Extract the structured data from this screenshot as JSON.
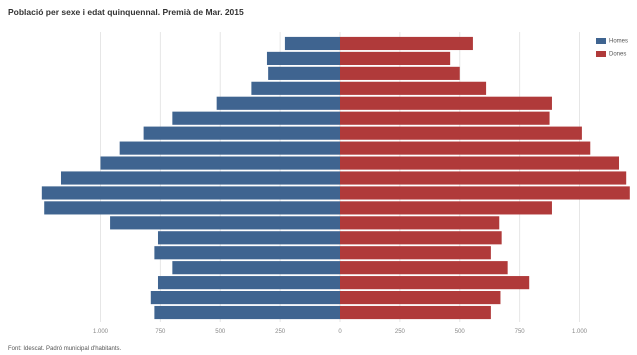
{
  "title": "Població per sexe i edat quinquennal. Premià de Mar. 2015",
  "source": "Font: Idescat. Padró municipal d'habitants.",
  "colors": {
    "male": "#3f6490",
    "female": "#b03a3a",
    "grid": "#e6e6e6",
    "tick": "#888888"
  },
  "chart_data": {
    "type": "bar",
    "orientation": "horizontal",
    "title": "Població per sexe i edat quinquennal. Premià de Mar. 2015",
    "xlabel": "",
    "ylabel": "",
    "xlim": [
      -1200,
      1200
    ],
    "xticks": [
      -1000,
      -750,
      -500,
      -250,
      0,
      250,
      500,
      750,
      1000
    ],
    "xtick_labels": [
      "1.000",
      "750",
      "500",
      "250",
      "0",
      "250",
      "500",
      "750",
      "1.000"
    ],
    "categories_top_to_bottom": 19,
    "grid": true,
    "legend_position": "top-right",
    "series": [
      {
        "name": "Homes",
        "color": "#3f6490",
        "values": [
          230,
          305,
          300,
          370,
          515,
          700,
          820,
          920,
          1000,
          1165,
          1245,
          1235,
          960,
          760,
          775,
          700,
          760,
          790,
          775
        ]
      },
      {
        "name": "Dones",
        "color": "#b03a3a",
        "values": [
          555,
          460,
          500,
          610,
          885,
          875,
          1010,
          1045,
          1165,
          1195,
          1210,
          885,
          665,
          675,
          630,
          700,
          790,
          670,
          630
        ]
      }
    ]
  }
}
